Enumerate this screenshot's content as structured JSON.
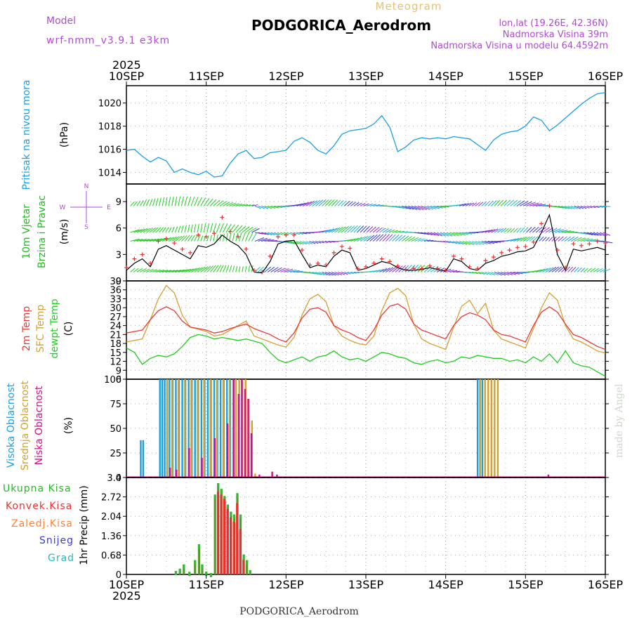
{
  "header": {
    "model_label": "Model",
    "model_name": "wrf-nmm_v3.9.1 e3km",
    "meteogram_label": "Meteogram",
    "station": "PODGORICA_Aerodrom",
    "lonlat": "lon,lat (19.26E, 42.36N)",
    "altitude": "Nadmorska Visina 39m",
    "model_altitude": "Nadmorska Visina u modelu 64.4592m",
    "year": "2025",
    "footer_station": "PODGORICA_Aerodrom",
    "credit": "made by Angel"
  },
  "colors": {
    "pressure": "#1aa0e0",
    "wind_label": "#22bb22",
    "speed": "#000000",
    "gust": "#e83030",
    "t2m": "#e83a3a",
    "tsfc": "#d4a030",
    "dewpt": "#22cc22",
    "high_cloud": "#1aa0e0",
    "mid_cloud": "#d4a030",
    "low_cloud": "#d0108a",
    "total_precip": "#33bb33",
    "conv_precip": "#e83030",
    "snow": "#3a3ad0",
    "hail": "#22bbbb",
    "frozen": "#ff7f30"
  },
  "chart_data": [
    {
      "type": "line",
      "id": "pressure",
      "ylabel_main": "Pritisak na nivou mora",
      "ylabel_unit": "(hPa)",
      "ylim": [
        1013,
        1021.5
      ],
      "yticks": [
        "1014",
        "1016",
        "1018",
        "1020"
      ],
      "x_days": [
        0,
        0.1,
        0.2,
        0.3,
        0.4,
        0.5,
        0.6,
        0.7,
        0.8,
        0.9,
        1.0,
        1.1,
        1.2,
        1.3,
        1.4,
        1.5,
        1.6,
        1.7,
        1.8,
        1.9,
        2.0,
        2.1,
        2.2,
        2.3,
        2.4,
        2.5,
        2.6,
        2.7,
        2.8,
        2.9,
        3.0,
        3.1,
        3.2,
        3.3,
        3.4,
        3.5,
        3.6,
        3.7,
        3.8,
        3.9,
        4.0,
        4.1,
        4.2,
        4.3,
        4.4,
        4.5,
        4.6,
        4.7,
        4.8,
        4.9,
        5.0,
        5.1,
        5.2,
        5.3,
        5.4,
        5.5,
        5.6,
        5.7,
        5.8,
        5.9,
        6.0
      ],
      "values": [
        1015.9,
        1016.0,
        1015.4,
        1014.9,
        1015.3,
        1015.0,
        1014.0,
        1014.3,
        1014.0,
        1013.8,
        1014.1,
        1013.6,
        1013.7,
        1014.8,
        1015.6,
        1015.9,
        1015.2,
        1015.3,
        1015.7,
        1015.8,
        1015.9,
        1016.7,
        1017.0,
        1016.6,
        1015.9,
        1015.6,
        1016.3,
        1017.3,
        1017.6,
        1017.7,
        1017.8,
        1018.2,
        1018.9,
        1017.9,
        1015.8,
        1016.2,
        1016.8,
        1017.0,
        1016.9,
        1017.0,
        1016.9,
        1017.1,
        1017.0,
        1016.9,
        1016.4,
        1015.9,
        1016.8,
        1017.3,
        1017.5,
        1017.6,
        1018.0,
        1018.8,
        1018.5,
        1017.6,
        1018.1,
        1018.7,
        1019.3,
        1019.9,
        1020.4,
        1020.8,
        1020.9
      ],
      "series": [
        {
          "name": "Pritisak",
          "color_key": "pressure"
        }
      ]
    },
    {
      "type": "line",
      "id": "wind",
      "ylabel_main": "10m Vjetar",
      "ylabel_sub": "Brzina i Pravac",
      "ylabel_unit": "(m/s)",
      "compass": {
        "n": "N",
        "e": "E",
        "w": "W",
        "s": "S"
      },
      "ylim": [
        0,
        11
      ],
      "yticks": [
        "0",
        "3",
        "6",
        "9"
      ],
      "x_days": [
        0,
        0.1,
        0.2,
        0.3,
        0.4,
        0.5,
        0.6,
        0.7,
        0.8,
        0.9,
        1.0,
        1.1,
        1.2,
        1.3,
        1.4,
        1.5,
        1.6,
        1.7,
        1.8,
        1.9,
        2.0,
        2.1,
        2.2,
        2.3,
        2.4,
        2.5,
        2.6,
        2.7,
        2.8,
        2.9,
        3.0,
        3.1,
        3.2,
        3.3,
        3.4,
        3.5,
        3.6,
        3.7,
        3.8,
        3.9,
        4.0,
        4.1,
        4.2,
        4.3,
        4.4,
        4.5,
        4.6,
        4.7,
        4.8,
        4.9,
        5.0,
        5.1,
        5.2,
        5.3,
        5.4,
        5.5,
        5.6,
        5.7,
        5.8,
        5.9,
        6.0
      ],
      "speed": [
        1.2,
        2.0,
        2.5,
        1.6,
        3.6,
        4.0,
        3.5,
        3.0,
        2.5,
        4.0,
        3.8,
        4.2,
        5.2,
        4.5,
        4.0,
        3.0,
        1.0,
        0.9,
        2.2,
        4.2,
        4.5,
        4.6,
        3.0,
        1.5,
        1.8,
        1.6,
        2.8,
        3.5,
        3.2,
        1.2,
        1.4,
        1.8,
        2.2,
        2.0,
        1.5,
        1.2,
        1.2,
        1.3,
        1.5,
        1.3,
        1.1,
        2.5,
        2.2,
        1.4,
        1.2,
        2.0,
        2.3,
        2.8,
        3.0,
        3.3,
        3.4,
        3.8,
        5.5,
        7.5,
        3.0,
        1.2,
        3.6,
        3.4,
        3.6,
        3.8,
        3.5
      ],
      "gust": [
        1.5,
        2.5,
        3.0,
        2.0,
        4.5,
        4.8,
        4.3,
        3.6,
        3.2,
        5.2,
        5.0,
        5.4,
        7.2,
        5.6,
        5.0,
        3.6,
        1.2,
        1.0,
        2.8,
        5.0,
        5.2,
        5.2,
        3.5,
        1.8,
        2.0,
        1.8,
        3.2,
        3.9,
        3.7,
        1.4,
        1.6,
        2.0,
        2.5,
        2.2,
        1.7,
        1.3,
        1.4,
        1.4,
        1.7,
        1.4,
        1.2,
        2.8,
        2.5,
        1.6,
        1.4,
        2.3,
        2.7,
        3.2,
        3.5,
        3.8,
        3.9,
        4.4,
        6.5,
        8.5,
        3.5,
        1.5,
        4.2,
        4.0,
        4.2,
        4.5,
        4.3
      ],
      "series": [
        {
          "name": "Brzina",
          "color_key": "speed"
        },
        {
          "name": "Udari",
          "color_key": "gust"
        }
      ]
    },
    {
      "type": "line",
      "id": "temperature",
      "ylabel_a": "2m Temp",
      "ylabel_b": "SFC Temp",
      "ylabel_c": "dewpt Temp",
      "ylabel_unit": "(C)",
      "ylim": [
        6,
        39
      ],
      "yticks": [
        "6",
        "9",
        "12",
        "15",
        "18",
        "21",
        "24",
        "27",
        "30",
        "33",
        "36",
        "39"
      ],
      "x_days": [
        0,
        0.1,
        0.2,
        0.3,
        0.4,
        0.5,
        0.6,
        0.7,
        0.8,
        0.9,
        1.0,
        1.1,
        1.2,
        1.3,
        1.4,
        1.5,
        1.6,
        1.7,
        1.8,
        1.9,
        2.0,
        2.1,
        2.2,
        2.3,
        2.4,
        2.5,
        2.6,
        2.7,
        2.8,
        2.9,
        3.0,
        3.1,
        3.2,
        3.3,
        3.4,
        3.5,
        3.6,
        3.7,
        3.8,
        3.9,
        4.0,
        4.1,
        4.2,
        4.3,
        4.4,
        4.5,
        4.6,
        4.7,
        4.8,
        4.9,
        5.0,
        5.1,
        5.2,
        5.3,
        5.4,
        5.5,
        5.6,
        5.7,
        5.8,
        5.9,
        6.0
      ],
      "series": [
        {
          "name": "2m Temp",
          "color_key": "t2m",
          "values": [
            21.5,
            22.0,
            22.5,
            26.0,
            29.0,
            30.3,
            29.0,
            25.5,
            23.5,
            23.0,
            22.5,
            21.5,
            22.0,
            23.0,
            23.8,
            24.5,
            23.0,
            22.0,
            21.0,
            19.5,
            18.5,
            21.5,
            26.5,
            29.5,
            30.0,
            28.5,
            24.0,
            22.5,
            21.5,
            20.0,
            19.0,
            22.5,
            27.5,
            30.5,
            31.3,
            29.5,
            24.5,
            22.5,
            21.5,
            20.5,
            19.5,
            24.0,
            27.0,
            28.3,
            27.5,
            26.0,
            22.5,
            21.0,
            20.5,
            19.5,
            18.5,
            24.0,
            28.5,
            30.3,
            28.5,
            24.5,
            21.0,
            20.0,
            18.5,
            17.0,
            16.0
          ]
        },
        {
          "name": "SFC Temp",
          "color_key": "tsfc",
          "values": [
            18.5,
            19.0,
            19.5,
            26.0,
            33.0,
            37.5,
            35.0,
            27.5,
            23.5,
            22.8,
            22.0,
            20.5,
            21.0,
            22.5,
            24.0,
            25.5,
            20.5,
            19.5,
            18.5,
            17.5,
            16.8,
            20.0,
            27.5,
            33.0,
            34.5,
            32.0,
            24.0,
            20.5,
            19.0,
            18.0,
            17.5,
            20.5,
            29.0,
            35.0,
            36.5,
            34.0,
            24.5,
            19.5,
            18.0,
            17.0,
            16.0,
            23.5,
            30.5,
            32.5,
            28.0,
            31.5,
            22.5,
            19.5,
            18.5,
            17.5,
            16.5,
            23.0,
            30.0,
            35.0,
            32.5,
            24.0,
            19.5,
            18.5,
            17.0,
            15.5,
            14.8
          ]
        },
        {
          "name": "dewpt Temp",
          "color_key": "dewpt",
          "values": [
            16.5,
            15.0,
            11.0,
            13.0,
            14.0,
            13.5,
            14.5,
            17.0,
            20.0,
            21.0,
            20.5,
            19.5,
            20.0,
            19.5,
            19.0,
            19.5,
            18.8,
            18.0,
            15.0,
            12.5,
            11.5,
            12.5,
            13.5,
            12.0,
            13.5,
            14.0,
            15.5,
            13.5,
            12.5,
            13.0,
            12.0,
            13.5,
            15.0,
            14.5,
            13.5,
            13.0,
            11.5,
            11.0,
            12.0,
            12.5,
            11.5,
            12.0,
            13.5,
            13.0,
            14.0,
            13.5,
            13.0,
            13.0,
            12.0,
            12.5,
            11.5,
            13.5,
            12.0,
            14.5,
            11.5,
            15.5,
            11.5,
            10.5,
            10.0,
            8.5,
            7.0
          ]
        }
      ]
    },
    {
      "type": "bar",
      "id": "clouds",
      "ylabel_a": "Visoka Oblacnost",
      "ylabel_b": "Srednja Oblacnost",
      "ylabel_c": "Niska Oblacnost",
      "ylabel_unit": "(%)",
      "ylim": [
        0,
        100
      ],
      "yticks": [
        "0",
        "25",
        "50",
        "75",
        "100"
      ],
      "series": [
        {
          "name": "Visoka Oblacnost",
          "color_key": "high_cloud",
          "x_days": [
            0.18,
            0.21,
            0.42,
            0.45,
            0.48,
            0.51,
            0.54,
            0.58,
            0.62,
            0.66,
            0.7,
            0.74,
            0.78,
            0.82,
            0.86,
            0.9,
            0.94,
            0.98,
            1.02,
            1.06,
            1.1,
            1.14,
            1.18,
            1.22,
            1.26,
            1.3,
            1.34,
            4.4,
            4.43,
            4.46
          ],
          "values": [
            38,
            38,
            100,
            100,
            100,
            100,
            100,
            100,
            100,
            100,
            100,
            100,
            100,
            100,
            100,
            100,
            100,
            100,
            100,
            100,
            100,
            100,
            100,
            100,
            100,
            100,
            100,
            100,
            100,
            100
          ]
        },
        {
          "name": "Srednja Oblacnost",
          "color_key": "mid_cloud",
          "x_days": [
            0.5,
            0.56,
            0.64,
            0.72,
            0.8,
            0.88,
            0.96,
            1.04,
            1.12,
            1.2,
            1.28,
            1.36,
            1.4,
            1.44,
            1.48,
            1.52,
            1.56,
            1.6,
            4.42,
            4.48,
            4.52,
            4.56,
            4.6,
            4.64
          ],
          "values": [
            100,
            100,
            100,
            100,
            100,
            100,
            100,
            100,
            100,
            100,
            100,
            100,
            100,
            100,
            100,
            80,
            58,
            4,
            100,
            100,
            100,
            100,
            100,
            100
          ]
        },
        {
          "name": "Niska Oblacnost",
          "color_key": "low_cloud",
          "x_days": [
            0.52,
            0.6,
            0.76,
            0.92,
            1.08,
            1.24,
            1.32,
            1.38,
            1.42,
            1.46,
            1.5,
            1.54,
            1.64,
            1.8,
            1.86,
            5.26
          ],
          "values": [
            10,
            8,
            30,
            20,
            40,
            55,
            100,
            85,
            100,
            90,
            80,
            45,
            3,
            6,
            3,
            3
          ]
        }
      ]
    },
    {
      "type": "bar",
      "id": "precip",
      "ylabel_main": "1hr Precip (mm)",
      "legend": [
        "Ukupna Kisa",
        "Konvek.Kisa",
        "Zaledj.Kisa",
        "Snijeg",
        "Grad"
      ],
      "ylim": [
        0,
        3.4
      ],
      "yticks": [
        "0",
        "0.68",
        "1.36",
        "2.04",
        "2.72",
        "3.4"
      ],
      "series": [
        {
          "name": "Ukupna Kisa",
          "color_key": "total_precip",
          "x_days": [
            0.62,
            0.67,
            0.72,
            0.79,
            0.86,
            0.91,
            0.95,
            1.0,
            1.06,
            1.11,
            1.15,
            1.19,
            1.23,
            1.27,
            1.31,
            1.35,
            1.39,
            1.43,
            1.47,
            1.51,
            1.55
          ],
          "values": [
            0.12,
            0.2,
            0.35,
            0.09,
            0.5,
            1.06,
            0.35,
            0.1,
            0.05,
            2.8,
            3.2,
            3.0,
            2.75,
            2.45,
            2.2,
            2.1,
            2.85,
            2.1,
            0.7,
            0.5,
            0.15
          ]
        },
        {
          "name": "Konvek.Kisa",
          "color_key": "conv_precip",
          "x_days": [
            1.13,
            1.17,
            1.21,
            1.25,
            1.29,
            1.33,
            1.37,
            1.41,
            1.45
          ],
          "values": [
            2.9,
            2.8,
            2.65,
            2.3,
            2.0,
            1.85,
            2.5,
            1.6,
            0.5
          ]
        }
      ]
    }
  ],
  "x_axis": {
    "ticks": [
      "10SEP",
      "11SEP",
      "12SEP",
      "13SEP",
      "14SEP",
      "15SEP",
      "16SEP"
    ]
  }
}
